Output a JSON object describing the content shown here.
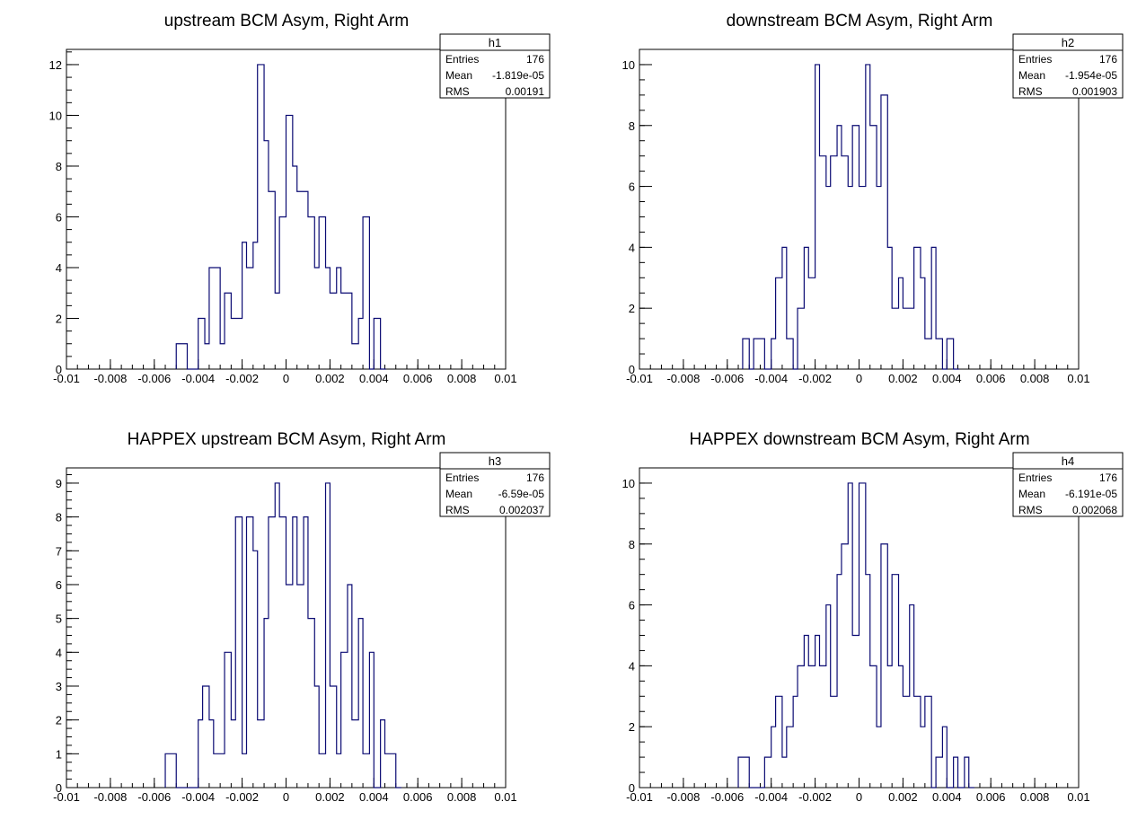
{
  "colors": {
    "histogram_line": "#0b0b73",
    "axis": "#000000",
    "background": "#ffffff"
  },
  "chart_data": [
    {
      "type": "bar",
      "title": "upstream BCM Asym, Right Arm",
      "xlim": [
        -0.01,
        0.01
      ],
      "ylim": [
        0,
        12.6
      ],
      "bin_width": 0.00025,
      "x_ticks": [
        -0.01,
        -0.008,
        -0.006,
        -0.004,
        -0.002,
        0,
        0.002,
        0.004,
        0.006,
        0.008,
        0.01
      ],
      "x_tick_labels": [
        "-0.01",
        "-0.008",
        "-0.006",
        "-0.004",
        "-0.002",
        "0",
        "0.002",
        "0.004",
        "0.006",
        "0.008",
        "0.01"
      ],
      "y_ticks": [
        0,
        2,
        4,
        6,
        8,
        10,
        12
      ],
      "y_minor_step": 0.5,
      "x": [
        -0.005,
        -0.0045,
        -0.004,
        -0.0037,
        -0.0035,
        -0.003,
        -0.0028,
        -0.0025,
        -0.002,
        -0.0018,
        -0.0015,
        -0.0013,
        -0.001,
        -0.0008,
        -0.0005,
        -0.0003,
        0.0,
        0.0003,
        0.0005,
        0.001,
        0.0013,
        0.0015,
        0.0018,
        0.002,
        0.0023,
        0.0025,
        0.003,
        0.0033,
        0.0035,
        0.0038,
        0.004,
        0.0043
      ],
      "values": [
        1,
        0,
        2,
        1,
        4,
        1,
        3,
        2,
        5,
        4,
        5,
        12,
        9,
        7,
        3,
        6,
        10,
        8,
        7,
        6,
        4,
        6,
        4,
        3,
        4,
        3,
        1,
        2,
        6,
        0,
        2,
        0
      ],
      "stats": {
        "name": "h1",
        "rows": [
          {
            "label": "Entries",
            "value": "176"
          },
          {
            "label": "Mean",
            "value": "-1.819e-05"
          },
          {
            "label": "RMS",
            "value": "0.00191"
          }
        ]
      }
    },
    {
      "type": "bar",
      "title": "downstream BCM Asym, Right Arm",
      "xlim": [
        -0.01,
        0.01
      ],
      "ylim": [
        0,
        10.5
      ],
      "bin_width": 0.00025,
      "x_ticks": [
        -0.01,
        -0.008,
        -0.006,
        -0.004,
        -0.002,
        0,
        0.002,
        0.004,
        0.006,
        0.008,
        0.01
      ],
      "x_tick_labels": [
        "-0.01",
        "-0.008",
        "-0.006",
        "-0.004",
        "-0.002",
        "0",
        "0.002",
        "0.004",
        "0.006",
        "0.008",
        "0.01"
      ],
      "y_ticks": [
        0,
        2,
        4,
        6,
        8,
        10
      ],
      "y_minor_step": 0.5,
      "x": [
        -0.0053,
        -0.005,
        -0.0048,
        -0.0043,
        -0.004,
        -0.0038,
        -0.0035,
        -0.0033,
        -0.003,
        -0.0028,
        -0.0025,
        -0.0023,
        -0.002,
        -0.0018,
        -0.0015,
        -0.0013,
        -0.001,
        -0.0008,
        -0.0005,
        -0.0003,
        0.0,
        0.0003,
        0.0005,
        0.0008,
        0.001,
        0.0013,
        0.0015,
        0.0018,
        0.002,
        0.0023,
        0.0025,
        0.0028,
        0.003,
        0.0033,
        0.0035,
        0.0038,
        0.004,
        0.0043
      ],
      "values": [
        1,
        0,
        1,
        0,
        1,
        3,
        4,
        1,
        0,
        2,
        4,
        3,
        10,
        7,
        6,
        7,
        8,
        7,
        6,
        8,
        6,
        10,
        8,
        6,
        9,
        4,
        2,
        3,
        2,
        2,
        4,
        3,
        1,
        4,
        1,
        0,
        1,
        0
      ],
      "stats": {
        "name": "h2",
        "rows": [
          {
            "label": "Entries",
            "value": "176"
          },
          {
            "label": "Mean",
            "value": "-1.954e-05"
          },
          {
            "label": "RMS",
            "value": "0.001903"
          }
        ]
      }
    },
    {
      "type": "bar",
      "title": "HAPPEX upstream BCM Asym, Right Arm",
      "xlim": [
        -0.01,
        0.01
      ],
      "ylim": [
        0,
        9.45
      ],
      "bin_width": 0.00025,
      "x_ticks": [
        -0.01,
        -0.008,
        -0.006,
        -0.004,
        -0.002,
        0,
        0.002,
        0.004,
        0.006,
        0.008,
        0.01
      ],
      "x_tick_labels": [
        "-0.01",
        "-0.008",
        "-0.006",
        "-0.004",
        "-0.002",
        "0",
        "0.002",
        "0.004",
        "0.006",
        "0.008",
        "0.01"
      ],
      "y_ticks": [
        0,
        1,
        2,
        3,
        4,
        5,
        6,
        7,
        8,
        9
      ],
      "y_minor_step": 0.25,
      "x": [
        -0.0055,
        -0.005,
        -0.004,
        -0.0038,
        -0.0035,
        -0.0033,
        -0.0028,
        -0.0025,
        -0.0023,
        -0.002,
        -0.0018,
        -0.0015,
        -0.0013,
        -0.001,
        -0.0008,
        -0.0005,
        -0.0003,
        0.0,
        0.0003,
        0.0005,
        0.0008,
        0.001,
        0.0013,
        0.0015,
        0.0018,
        0.002,
        0.0023,
        0.0025,
        0.0028,
        0.003,
        0.0033,
        0.0035,
        0.0038,
        0.004,
        0.0043,
        0.0045,
        0.005
      ],
      "values": [
        1,
        0,
        2,
        3,
        2,
        1,
        4,
        2,
        8,
        1,
        8,
        7,
        2,
        5,
        8,
        9,
        8,
        6,
        8,
        6,
        8,
        5,
        3,
        1,
        9,
        3,
        1,
        4,
        6,
        2,
        5,
        1,
        4,
        0,
        2,
        1,
        0
      ],
      "stats": {
        "name": "h3",
        "rows": [
          {
            "label": "Entries",
            "value": "176"
          },
          {
            "label": "Mean",
            "value": "-6.59e-05"
          },
          {
            "label": "RMS",
            "value": "0.002037"
          }
        ]
      }
    },
    {
      "type": "bar",
      "title": "HAPPEX downstream BCM Asym, Right Arm",
      "xlim": [
        -0.01,
        0.01
      ],
      "ylim": [
        0,
        10.5
      ],
      "bin_width": 0.00025,
      "x_ticks": [
        -0.01,
        -0.008,
        -0.006,
        -0.004,
        -0.002,
        0,
        0.002,
        0.004,
        0.006,
        0.008,
        0.01
      ],
      "x_tick_labels": [
        "-0.01",
        "-0.008",
        "-0.006",
        "-0.004",
        "-0.002",
        "0",
        "0.002",
        "0.004",
        "0.006",
        "0.008",
        "0.01"
      ],
      "y_ticks": [
        0,
        2,
        4,
        6,
        8,
        10
      ],
      "y_minor_step": 0.5,
      "x": [
        -0.0055,
        -0.005,
        -0.0043,
        -0.004,
        -0.0038,
        -0.0035,
        -0.0033,
        -0.003,
        -0.0028,
        -0.0025,
        -0.0023,
        -0.002,
        -0.0018,
        -0.0015,
        -0.0013,
        -0.001,
        -0.0008,
        -0.0005,
        -0.0003,
        0.0,
        0.0003,
        0.0005,
        0.0008,
        0.001,
        0.0013,
        0.0015,
        0.0018,
        0.002,
        0.0023,
        0.0025,
        0.0028,
        0.003,
        0.0033,
        0.0035,
        0.0038,
        0.004,
        0.0043,
        0.0045,
        0.0048,
        0.005
      ],
      "values": [
        1,
        0,
        1,
        2,
        3,
        1,
        2,
        3,
        4,
        5,
        4,
        5,
        4,
        6,
        3,
        7,
        8,
        10,
        5,
        10,
        7,
        4,
        2,
        8,
        4,
        7,
        4,
        3,
        6,
        3,
        2,
        3,
        0,
        1,
        2,
        0,
        1,
        0,
        1,
        0
      ],
      "stats": {
        "name": "h4",
        "rows": [
          {
            "label": "Entries",
            "value": "176"
          },
          {
            "label": "Mean",
            "value": "-6.191e-05"
          },
          {
            "label": "RMS",
            "value": "0.002068"
          }
        ]
      }
    }
  ]
}
